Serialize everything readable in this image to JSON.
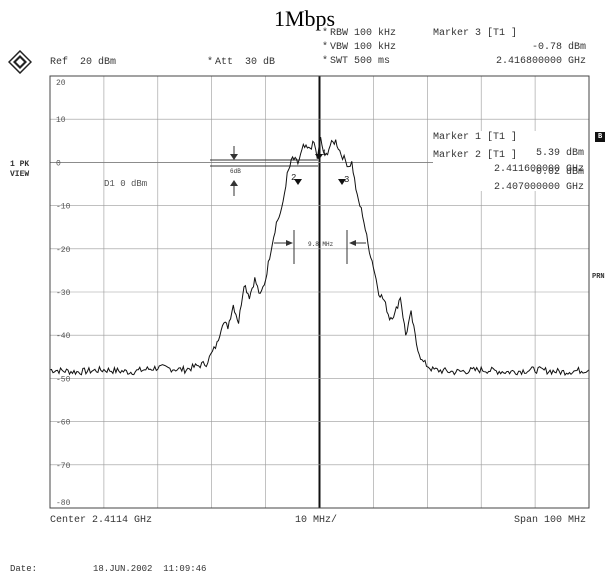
{
  "title": "1Mbps",
  "logo_icon": "rohde-schwarz-logo-icon",
  "header": {
    "rbw": "RBW 100 kHz",
    "vbw": "VBW 100 kHz",
    "swt": "SWT 500 ms",
    "ref": "Ref  20 dBm",
    "att": "Att  30 dB",
    "marker3_label": "Marker 3 [T1 ]",
    "marker3_level": "-0.78 dBm",
    "marker3_freq": "2.416800000 GHz"
  },
  "side": {
    "trace_mode": "1 PK",
    "trace_view": "VIEW",
    "right_b": "B",
    "right_prn": "PRN"
  },
  "markers_box": {
    "m1_label": "Marker 1 [T1 ]",
    "m1_level": "5.39 dBm",
    "m1_freq": "2.411600000 GHz",
    "m2_label": "Marker 2 [T1 ]",
    "m2_level": "-0.02 dBm",
    "m2_freq": "2.407000000 GHz"
  },
  "annotations": {
    "display_line": "D1 0 dBm",
    "delta_6db": "6dB",
    "bw_label": "9.8 MHz",
    "marker_1": "1",
    "marker_2": "2",
    "marker_3": "3"
  },
  "footer": {
    "center": "Center 2.4114 GHz",
    "div": "10 MHz/",
    "span": "Span 100 MHz",
    "date_label": "Date:",
    "date_value": "18.JUN.2002  11:09:46"
  },
  "colors": {
    "trace": "#111111",
    "grid": "#9a9a9a",
    "frame": "#444444"
  },
  "chart_data": {
    "type": "line",
    "title": "1Mbps",
    "xlabel": "",
    "ylabel": "",
    "x_unit": "GHz",
    "y_unit": "dBm",
    "xlim": [
      2.3614,
      2.4614
    ],
    "ylim": [
      -80,
      20
    ],
    "y_tick_labels": [
      "20",
      "10",
      "0",
      "-10",
      "-20",
      "-30",
      "-40",
      "-50",
      "-60",
      "-70",
      "-80"
    ],
    "grid": true,
    "series": [
      {
        "x": [
          2.3614,
          2.3664,
          2.3714,
          2.3764,
          2.3814,
          2.3864,
          2.3904,
          2.3924,
          2.3934,
          2.3944,
          2.3954,
          2.3964,
          2.3974,
          2.3984,
          2.3994,
          2.4004,
          2.4014,
          2.4024,
          2.4034,
          2.4044,
          2.4054,
          2.4064,
          2.4074,
          2.4084,
          2.4094,
          2.4104,
          2.411,
          2.4116,
          2.4124,
          2.4134,
          2.4144,
          2.4154,
          2.4168,
          2.4174,
          2.4184,
          2.4194,
          2.4204,
          2.4214,
          2.4224,
          2.4234,
          2.4244,
          2.4254,
          2.4264,
          2.4274,
          2.4284,
          2.4294,
          2.4304,
          2.4324,
          2.4364,
          2.4414,
          2.4464,
          2.4514,
          2.4564,
          2.4614
        ],
        "y": [
          -48,
          -48.5,
          -48,
          -48.5,
          -47.5,
          -48,
          -46.5,
          -42,
          -37,
          -38,
          -33,
          -37,
          -28,
          -31,
          -27,
          -31,
          -27,
          -20,
          -14,
          -11,
          -3,
          1,
          -0.2,
          3.5,
          3,
          4.5,
          1,
          5.4,
          1,
          4,
          5,
          2,
          -0.8,
          0,
          -8,
          -12,
          -19,
          -24,
          -30,
          -32,
          -36,
          -35,
          -31,
          -40,
          -35,
          -42,
          -46,
          -48,
          -48.5,
          -48,
          -48.5,
          -48,
          -48.5,
          -48
        ]
      }
    ]
  }
}
